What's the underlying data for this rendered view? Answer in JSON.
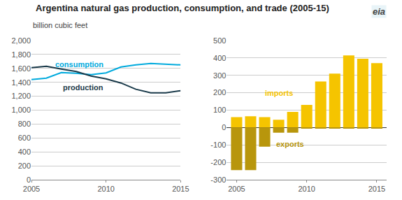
{
  "chart_data": [
    {
      "type": "line",
      "title": "Argentina natural gas production, consumption, and trade (2005-15)",
      "subtitle": "billion cubic feet",
      "annotations": [
        "eia"
      ],
      "x": [
        2005,
        2006,
        2007,
        2008,
        2009,
        2010,
        2011,
        2012,
        2013,
        2014,
        2015
      ],
      "series": [
        {
          "name": "consumption",
          "color": "#00aadd",
          "values": [
            1440,
            1460,
            1540,
            1530,
            1510,
            1535,
            1620,
            1650,
            1670,
            1660,
            1650
          ]
        },
        {
          "name": "production",
          "color": "#1a3a4a",
          "values": [
            1610,
            1630,
            1590,
            1555,
            1490,
            1450,
            1390,
            1300,
            1250,
            1250,
            1280
          ]
        }
      ],
      "xlim": [
        2005,
        2015
      ],
      "xticks": [
        2005,
        2010,
        2015
      ],
      "ylim": [
        0,
        2000
      ],
      "yticks": [
        0,
        200,
        400,
        600,
        800,
        {
          "value": 1000,
          "label": "1,000"
        },
        {
          "value": 1200,
          "label": "1,200"
        },
        {
          "value": 1400,
          "label": "1,400"
        },
        {
          "value": 1600,
          "label": "1,600"
        },
        {
          "value": 1800,
          "label": "1,800"
        },
        {
          "value": 2000,
          "label": "2,000"
        }
      ],
      "grid": true
    },
    {
      "type": "bar",
      "x": [
        2005,
        2006,
        2007,
        2008,
        2009,
        2010,
        2011,
        2012,
        2013,
        2014,
        2015
      ],
      "series": [
        {
          "name": "imports",
          "color": "#f5c400",
          "values": [
            60,
            65,
            60,
            45,
            90,
            130,
            265,
            310,
            415,
            395,
            370
          ]
        },
        {
          "name": "exports",
          "color": "#b8960c",
          "values": [
            -245,
            -245,
            -110,
            -30,
            -30,
            -5,
            -5,
            -5,
            -5,
            -5,
            -5
          ]
        }
      ],
      "xlim": [
        2004.3,
        2015.7
      ],
      "xticks": [
        2005,
        2010,
        2015
      ],
      "ylim": [
        -300,
        500
      ],
      "yticks": [
        -300,
        -200,
        -100,
        0,
        100,
        200,
        300,
        400,
        500
      ],
      "grid": true
    }
  ]
}
